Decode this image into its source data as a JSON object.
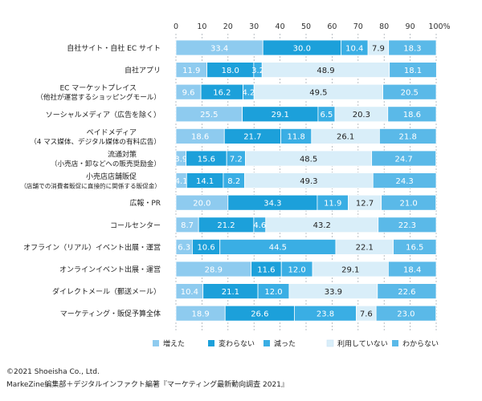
{
  "chart_data": {
    "type": "bar",
    "orientation": "horizontal",
    "stacked": true,
    "percent_scale": true,
    "xlim": [
      0,
      100
    ],
    "xticks": [
      "0",
      "10",
      "20",
      "30",
      "40",
      "50",
      "60",
      "70",
      "80",
      "90",
      "100%"
    ],
    "grid": "dashed vertical",
    "legend_position": "bottom",
    "categories": [
      [
        "自社サイト・自社 EC サイト"
      ],
      [
        "自社アプリ"
      ],
      [
        "EC マーケットプレイス",
        "（他社が運営するショッピングモール）"
      ],
      [
        "ソーシャルメディア（広告を除く）"
      ],
      [
        "ペイドメディア",
        "（4 マス媒体、デジタル媒体の有料広告）"
      ],
      [
        "流通対策",
        "（小売店・卸などへの販売奨励金）"
      ],
      [
        "小売店店舗販促",
        "（店舗での消費者販促に直接的に関係する販促金）"
      ],
      [
        "広報・PR"
      ],
      [
        "コールセンター"
      ],
      [
        "オフライン（リアル）イベント出展・運営"
      ],
      [
        "オンラインイベント出展・運営"
      ],
      [
        "ダイレクトメール（郵送メール）"
      ],
      [
        "マーケティング・販促予算全体"
      ]
    ],
    "series": [
      {
        "name": "増えた",
        "color": "#8ecbef",
        "values": [
          33.4,
          11.9,
          9.6,
          25.5,
          18.6,
          3.9,
          4.1,
          20.0,
          8.7,
          6.3,
          28.9,
          10.4,
          18.9
        ]
      },
      {
        "name": "変わらない",
        "color": "#1ca0da",
        "values": [
          30.0,
          18.0,
          16.2,
          29.1,
          21.7,
          15.6,
          14.1,
          34.3,
          21.2,
          10.6,
          11.6,
          21.1,
          26.6
        ]
      },
      {
        "name": "減った",
        "color": "#3aaee4",
        "values": [
          10.4,
          3.2,
          4.2,
          6.5,
          11.8,
          7.2,
          8.2,
          11.9,
          4.6,
          44.5,
          12.0,
          12.0,
          23.8
        ]
      },
      {
        "name": "利用していない",
        "color": "#d9eef9",
        "values": [
          7.9,
          48.9,
          49.5,
          20.3,
          26.1,
          48.5,
          49.3,
          12.7,
          43.2,
          22.1,
          29.1,
          33.9,
          7.6
        ]
      },
      {
        "name": "わからない",
        "color": "#5ab9e8",
        "values": [
          18.3,
          18.1,
          20.5,
          18.6,
          21.8,
          24.7,
          24.3,
          21.0,
          22.3,
          16.5,
          18.4,
          22.6,
          23.0
        ]
      }
    ]
  },
  "footer": {
    "copyright": "©2021 Shoeisha Co., Ltd.",
    "source": "MarkeZine編集部＋デジタルインファクト編著『マーケティング最新動向調査 2021』"
  }
}
